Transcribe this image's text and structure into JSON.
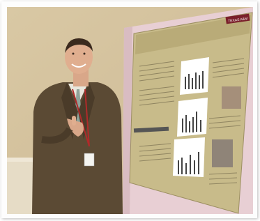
{
  "poster": {
    "logo": "TEXAS A&M"
  }
}
